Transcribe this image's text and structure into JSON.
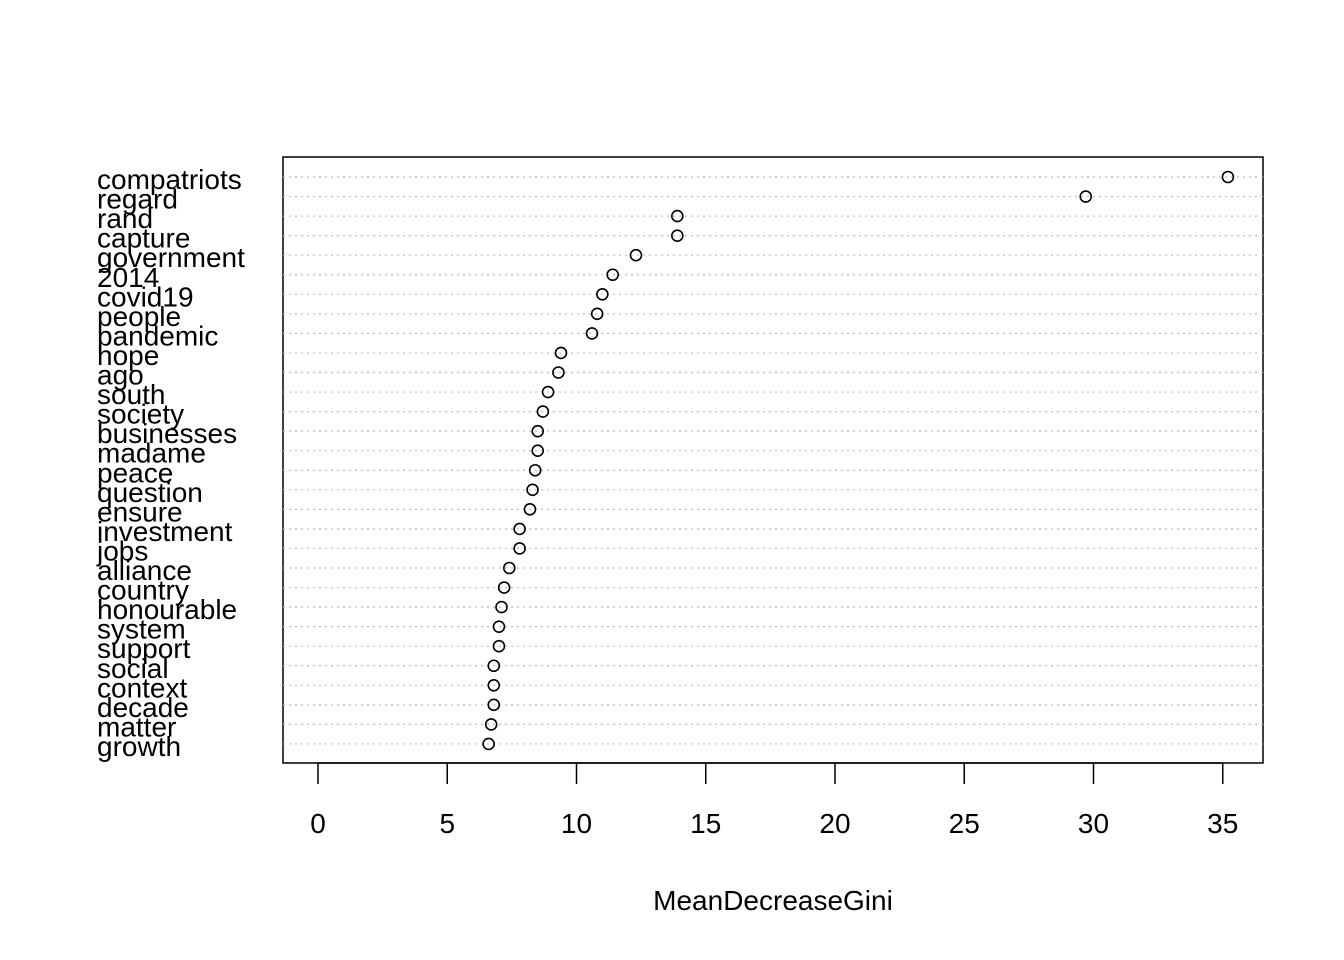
{
  "chart_data": {
    "type": "scatter",
    "title": "",
    "xlabel": "MeanDecreaseGini",
    "ylabel": "",
    "xlim": [
      -1.4,
      36.6
    ],
    "xticks": [
      0,
      5,
      10,
      15,
      20,
      25,
      30,
      35
    ],
    "grid": "dotted horizontal lines per category",
    "categories": [
      "compatriots",
      "regard",
      "rand",
      "capture",
      "government",
      "2014",
      "covid19",
      "people",
      "pandemic",
      "hope",
      "ago",
      "south",
      "society",
      "businesses",
      "madame",
      "peace",
      "question",
      "ensure",
      "investment",
      "jobs",
      "alliance",
      "country",
      "honourable",
      "system",
      "support",
      "social",
      "context",
      "decade",
      "matter",
      "growth"
    ],
    "values": [
      35.2,
      29.7,
      13.9,
      13.9,
      12.3,
      11.4,
      11.0,
      10.8,
      10.6,
      9.4,
      9.3,
      8.9,
      8.7,
      8.5,
      8.5,
      8.4,
      8.3,
      8.2,
      7.8,
      7.8,
      7.4,
      7.2,
      7.1,
      7.0,
      7.0,
      6.8,
      6.8,
      6.8,
      6.7,
      6.6
    ]
  }
}
